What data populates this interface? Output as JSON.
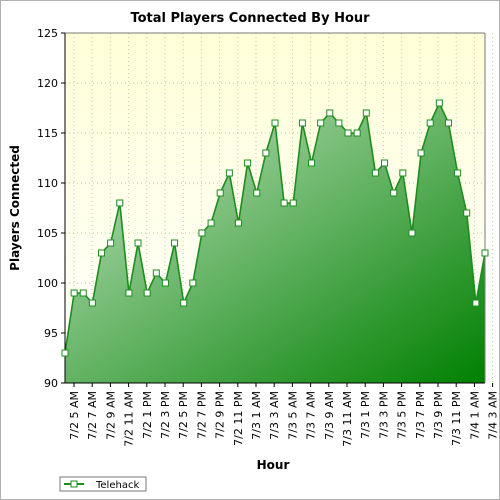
{
  "chart_data": {
    "type": "area",
    "title": "Total Players Connected By Hour",
    "xlabel": "Hour",
    "ylabel": "Players Connected",
    "ylim": [
      90,
      125
    ],
    "yticks": [
      90,
      95,
      100,
      105,
      110,
      115,
      120,
      125
    ],
    "grid": true,
    "legend_position": "bottom-left",
    "x_tick_labels": [
      "7/2 5 AM",
      "7/2 7 AM",
      "7/2 9 AM",
      "7/2 11 AM",
      "7/2 1 PM",
      "7/2 3 PM",
      "7/2 5 PM",
      "7/2 7 PM",
      "7/2 9 PM",
      "7/2 11 PM",
      "7/3 1 AM",
      "7/3 3 AM",
      "7/3 5 AM",
      "7/3 7 AM",
      "7/3 9 AM",
      "7/3 11 AM",
      "7/3 1 PM",
      "7/3 3 PM",
      "7/3 5 PM",
      "7/3 7 PM",
      "7/3 9 PM",
      "7/3 11 PM",
      "7/4 1 AM",
      "7/4 3 AM"
    ],
    "series": [
      {
        "name": "Telehack",
        "color": "#1e8c1e",
        "values": [
          93,
          99,
          99,
          98,
          103,
          104,
          108,
          99,
          104,
          99,
          101,
          100,
          104,
          98,
          100,
          105,
          106,
          109,
          111,
          106,
          112,
          109,
          113,
          116,
          108,
          108,
          116,
          112,
          116,
          117,
          116,
          115,
          115,
          117,
          111,
          112,
          109,
          111,
          105,
          113,
          116,
          118,
          116,
          111,
          107,
          98,
          103
        ]
      }
    ]
  },
  "colors": {
    "plot_bg_top": "#ffffd8",
    "plot_bg_bottom": "#ffffff",
    "area_light": "#c8e6c8",
    "area_dark": "#008000",
    "line": "#1e8c1e",
    "grid": "#c8c8a0"
  }
}
